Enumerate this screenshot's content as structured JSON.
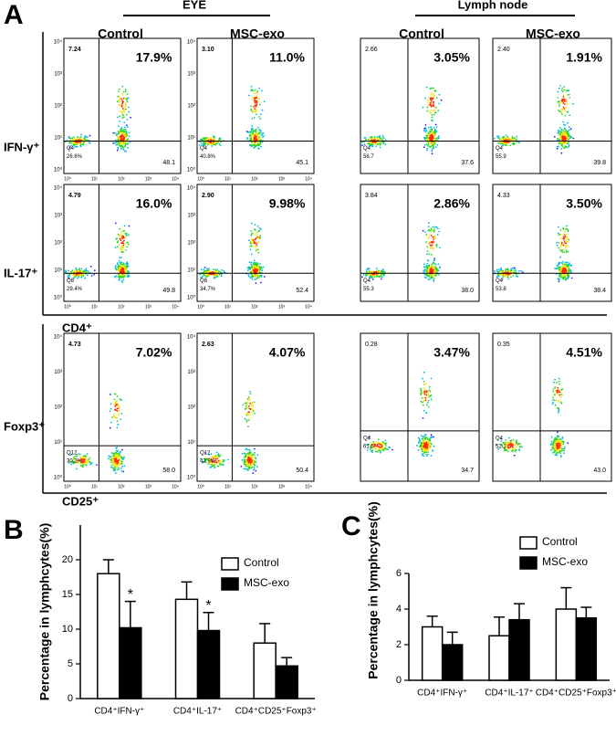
{
  "panel_a": {
    "letter": "A",
    "eye_header": "EYE",
    "lymph_header": "Lymph node",
    "column_headers": [
      "Control",
      "MSC-exo",
      "Control",
      "MSC-exo"
    ],
    "row_labels": [
      "IFN-γ⁺",
      "IL-17⁺",
      "Foxp3⁺"
    ],
    "x_axis_labels": [
      "CD4⁺",
      "CD25⁺"
    ],
    "log_ticks": [
      "10⁰",
      "10¹",
      "10²",
      "10³",
      "10⁴"
    ],
    "rows": [
      {
        "plots": [
          {
            "top_left": "7.24",
            "percent": "17.9%",
            "gate": "Q4",
            "bottom_left": "26.6%",
            "bottom_right": "48.1"
          },
          {
            "top_left": "3.10",
            "percent": "11.0%",
            "gate": "Q4",
            "bottom_left": "40.8%",
            "bottom_right": "45.1"
          },
          {
            "top_left": "2.66",
            "percent": "3.05%",
            "gate": "Q4",
            "bottom_left": "56.7",
            "bottom_right": "37.6"
          },
          {
            "top_left": "2.40",
            "percent": "1.91%",
            "gate": "Q4",
            "bottom_left": "55.9",
            "bottom_right": "39.8"
          }
        ]
      },
      {
        "plots": [
          {
            "top_left": "4.79",
            "percent": "16.0%",
            "gate": "Q8",
            "bottom_left": "29.4%",
            "bottom_right": "49.8"
          },
          {
            "top_left": "2.90",
            "percent": "9.98%",
            "gate": "Q8",
            "bottom_left": "34.7%",
            "bottom_right": "52.4"
          },
          {
            "top_left": "3.84",
            "percent": "2.86%",
            "gate": "Q4",
            "bottom_left": "55.3",
            "bottom_right": "38.0"
          },
          {
            "top_left": "4.33",
            "percent": "3.50%",
            "gate": "Q4",
            "bottom_left": "53.8",
            "bottom_right": "38.4"
          }
        ]
      },
      {
        "plots": [
          {
            "top_left": "4.73",
            "percent": "7.02%",
            "gate": "Q12",
            "bottom_left": "30.2%",
            "bottom_right": "58.0"
          },
          {
            "top_left": "2.63",
            "percent": "4.07%",
            "gate": "Q12",
            "bottom_left": "42.9%",
            "bottom_right": "50.4"
          },
          {
            "top_left": "0.28",
            "percent": "3.47%",
            "gate": "Q4",
            "bottom_left": "61.5",
            "bottom_right": "34.7"
          },
          {
            "top_left": "0.35",
            "percent": "4.51%",
            "gate": "Q4",
            "bottom_left": "52.1",
            "bottom_right": "43.0"
          }
        ]
      }
    ]
  },
  "chart_data": [
    {
      "type": "bar",
      "letter": "B",
      "y_label": "Percentage in lymphcytes(%)",
      "categories": [
        "CD4⁺IFN-γ⁺",
        "CD4⁺IL-17⁺",
        "CD4⁺CD25⁺Foxp3⁺"
      ],
      "series": [
        {
          "name": "Control",
          "color": "#ffffff",
          "values": [
            18,
            14.3,
            8
          ],
          "errors": [
            2,
            2.5,
            2.8
          ]
        },
        {
          "name": "MSC-exo",
          "color": "#000000",
          "values": [
            10.2,
            9.8,
            4.7
          ],
          "errors": [
            3.8,
            2.6,
            1.2
          ]
        }
      ],
      "significance": [
        [
          "",
          "*"
        ],
        [
          "",
          "*"
        ],
        [
          "",
          ""
        ]
      ],
      "ylim": [
        0,
        25
      ],
      "yticks": [
        0,
        5,
        10,
        15,
        20
      ]
    },
    {
      "type": "bar",
      "letter": "C",
      "y_label": "Percentage in lymphcytes(%)",
      "categories": [
        "CD4⁺IFN-γ⁺",
        "CD4⁺IL-17⁺",
        "CD4⁺CD25⁺Foxp3⁺"
      ],
      "series": [
        {
          "name": "Control",
          "color": "#ffffff",
          "values": [
            3,
            2.5,
            4
          ],
          "errors": [
            0.6,
            1.05,
            1.2
          ]
        },
        {
          "name": "MSC-exo",
          "color": "#000000",
          "values": [
            2,
            3.4,
            3.5
          ],
          "errors": [
            0.7,
            0.9,
            0.6
          ]
        }
      ],
      "ylim": [
        0,
        6
      ],
      "yticks": [
        0,
        2,
        4,
        6
      ]
    }
  ]
}
